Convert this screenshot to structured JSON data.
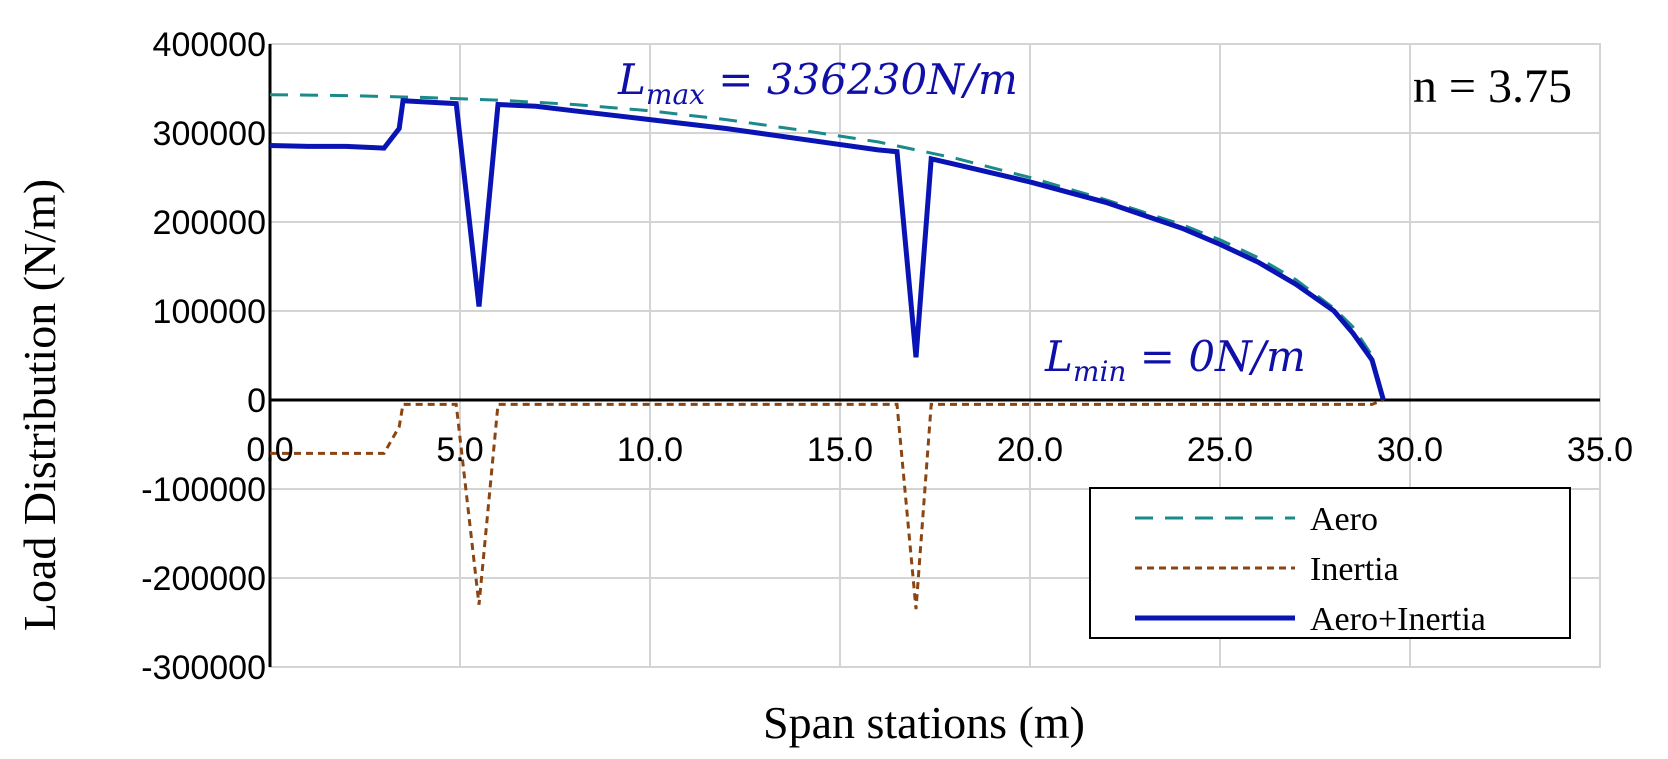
{
  "chart_data": {
    "type": "line",
    "xlabel": "Span stations (m)",
    "ylabel": "Load  Distribution (N/m)",
    "xlim": [
      0,
      35
    ],
    "ylim": [
      -300000,
      400000
    ],
    "x_ticks": [
      0,
      5,
      10,
      15,
      20,
      25,
      30,
      35
    ],
    "x_tick_labels": [
      "0.0",
      "5.0",
      "10.0",
      "15.0",
      "20.0",
      "25.0",
      "30.0",
      "35.0"
    ],
    "y_ticks": [
      400000,
      300000,
      200000,
      100000,
      0,
      -100000,
      -200000,
      -300000
    ],
    "y_tick_labels": [
      "400000",
      "300000",
      "200000",
      "100000",
      "0",
      "-100000",
      "-200000",
      "-300000"
    ],
    "grid": true,
    "legend_position": "bottom-right",
    "annotations": {
      "lmax": {
        "base": "L",
        "sub": "max",
        "rest": " = 336230N/m"
      },
      "lmin": {
        "base": "L",
        "sub": "min",
        "rest": " = 0N/m"
      },
      "n": "n = 3.75"
    },
    "series": [
      {
        "name": "Aero",
        "color": "#1b8a8a",
        "style": "dashed",
        "x": [
          0,
          2,
          4,
          6,
          8,
          10,
          12,
          14,
          16,
          18,
          20,
          22,
          24,
          25,
          26,
          27,
          28,
          28.5,
          29,
          29.3
        ],
        "y": [
          343000,
          342000,
          340000,
          337000,
          332000,
          325000,
          315000,
          303000,
          290000,
          272000,
          250000,
          225000,
          197000,
          180000,
          160000,
          135000,
          103000,
          82000,
          50000,
          0
        ]
      },
      {
        "name": "Inertia",
        "color": "#8b4513",
        "style": "dotted",
        "x": [
          0,
          3,
          3.4,
          3.5,
          4.9,
          5.5,
          6.0,
          16.5,
          17.0,
          17.4,
          29.0,
          29.3
        ],
        "y": [
          -60000,
          -60000,
          -30000,
          -5000,
          -5000,
          -230000,
          -5000,
          -5000,
          -235000,
          -5000,
          -5000,
          0
        ]
      },
      {
        "name": "Aero+Inertia",
        "color": "#0a14b4",
        "style": "solid",
        "x": [
          0,
          1,
          2,
          3,
          3.4,
          3.5,
          4.9,
          5.5,
          6.0,
          7,
          8,
          9,
          10,
          12,
          14,
          16,
          16.5,
          17.0,
          17.4,
          18,
          20,
          22,
          24,
          25,
          26,
          27,
          28,
          28.5,
          29.0,
          29.3
        ],
        "y": [
          286000,
          285000,
          285000,
          283000,
          305000,
          336230,
          333000,
          105000,
          332000,
          330000,
          325000,
          320000,
          315000,
          305000,
          293000,
          281000,
          279000,
          48000,
          271000,
          265000,
          245000,
          222000,
          193000,
          175000,
          155000,
          130000,
          100000,
          75000,
          45000,
          0
        ]
      }
    ]
  }
}
